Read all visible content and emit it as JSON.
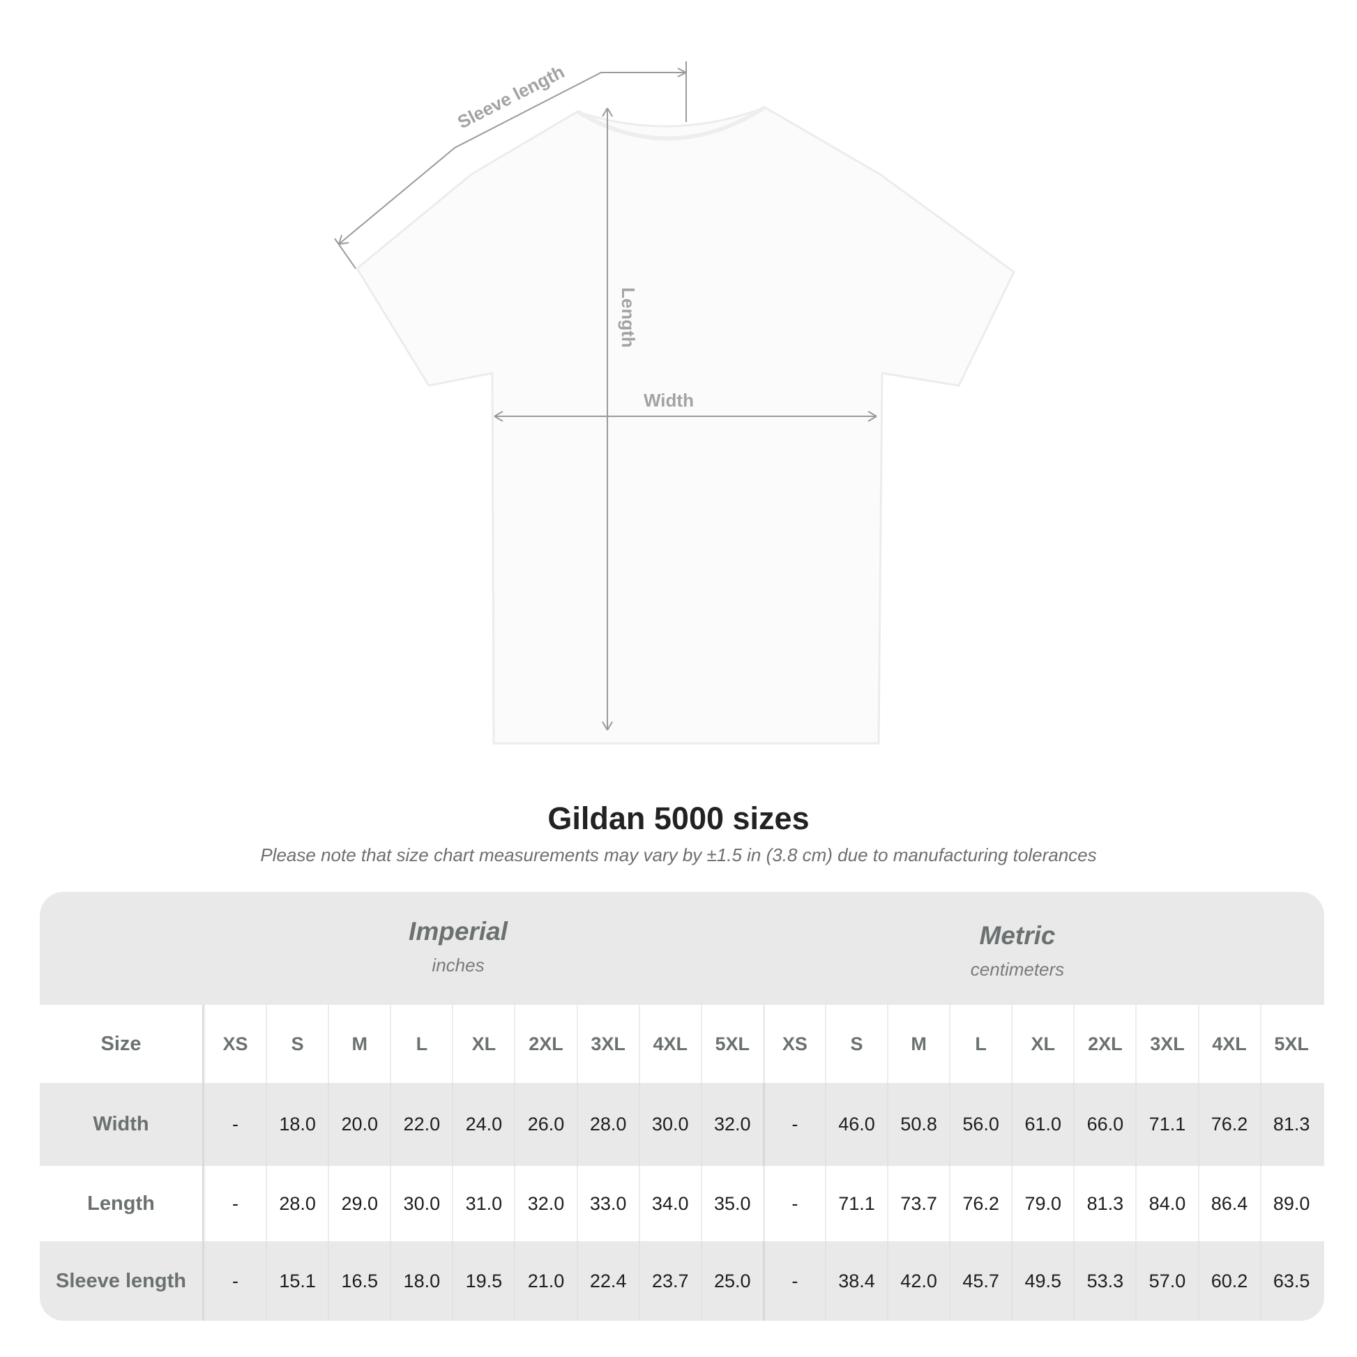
{
  "diagram": {
    "labels": {
      "sleeve": "Sleeve length",
      "length": "Length",
      "width": "Width"
    }
  },
  "title": "Gildan 5000 sizes",
  "note": "Please note that size chart measurements may vary by ±1.5 in (3.8 cm) due to manufacturing tolerances",
  "table": {
    "imperial": {
      "title": "Imperial",
      "unit": "inches"
    },
    "metric": {
      "title": "Metric",
      "unit": "centimeters"
    },
    "size_label": "Size",
    "sizes": [
      "XS",
      "S",
      "M",
      "L",
      "XL",
      "2XL",
      "3XL",
      "4XL",
      "5XL",
      "XS",
      "S",
      "M",
      "L",
      "XL",
      "2XL",
      "3XL",
      "4XL",
      "5XL"
    ],
    "rows": [
      {
        "label": "Width",
        "values": [
          "-",
          "18.0",
          "20.0",
          "22.0",
          "24.0",
          "26.0",
          "28.0",
          "30.0",
          "32.0",
          "-",
          "46.0",
          "50.8",
          "56.0",
          "61.0",
          "66.0",
          "71.1",
          "76.2",
          "81.3"
        ]
      },
      {
        "label": "Length",
        "values": [
          "-",
          "28.0",
          "29.0",
          "30.0",
          "31.0",
          "32.0",
          "33.0",
          "34.0",
          "35.0",
          "-",
          "71.1",
          "73.7",
          "76.2",
          "79.0",
          "81.3",
          "84.0",
          "86.4",
          "89.0"
        ]
      },
      {
        "label": "Sleeve length",
        "values": [
          "-",
          "15.1",
          "16.5",
          "18.0",
          "19.5",
          "21.0",
          "22.4",
          "23.7",
          "25.0",
          "-",
          "38.4",
          "42.0",
          "45.7",
          "49.5",
          "53.3",
          "57.0",
          "60.2",
          "63.5"
        ]
      }
    ]
  }
}
